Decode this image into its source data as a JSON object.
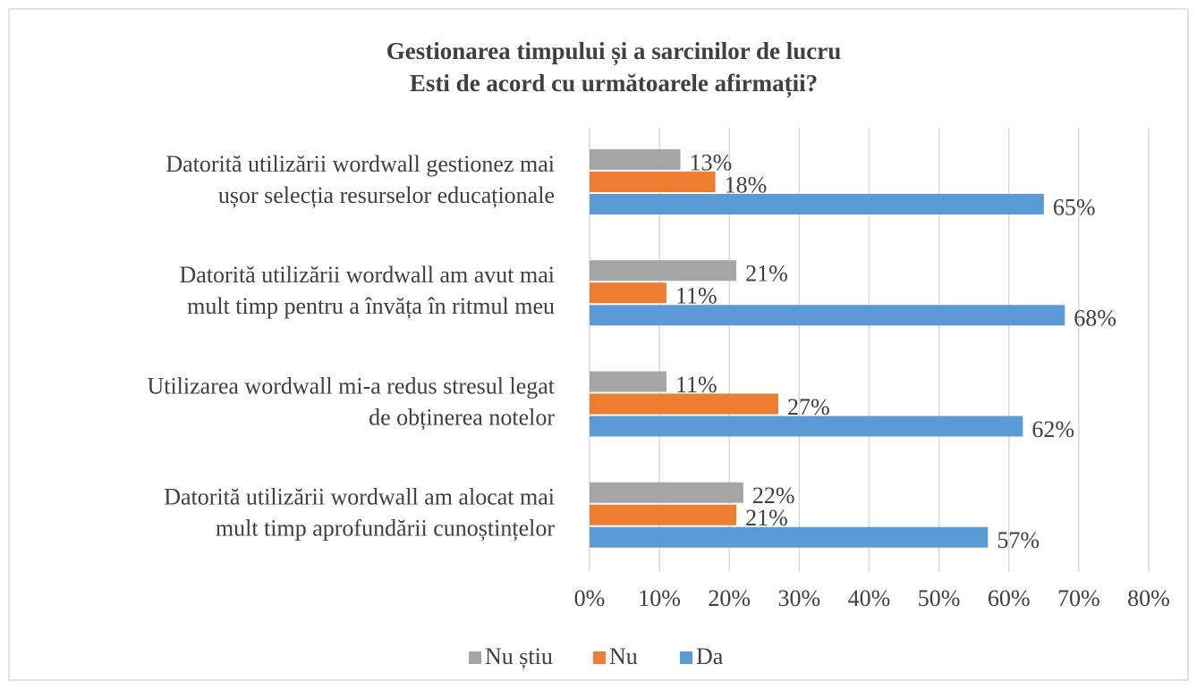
{
  "chart_data": {
    "type": "bar",
    "orientation": "horizontal",
    "title": [
      "Gestionarea timpului și a sarcinilor de lucru",
      "Esti de acord cu următoarele afirmații?"
    ],
    "categories": [
      [
        "Datorită utilizării  wordwall gestionez mai",
        "ușor selecția  resurselor educaționale"
      ],
      [
        "Datorită utilizării  wordwall am avut mai",
        "mult timp pentru a învăța în ritmul meu"
      ],
      [
        "Utilizarea  wordwall mi-a redus stresul legat",
        "de obținerea notelor"
      ],
      [
        "Datorită utilizării  wordwall am alocat mai",
        "mult timp aprofundării cunoștințelor"
      ]
    ],
    "series": [
      {
        "name": "Nu știu",
        "color": "#a5a5a5",
        "values": [
          13,
          21,
          11,
          22
        ],
        "value_labels": [
          "13%",
          "21%",
          "11%",
          "22%"
        ]
      },
      {
        "name": "Nu",
        "color": "#ed7d31",
        "values": [
          18,
          11,
          27,
          21
        ],
        "value_labels": [
          "18%",
          "11%",
          "27%",
          "21%"
        ]
      },
      {
        "name": "Da",
        "color": "#5b9bd5",
        "values": [
          65,
          68,
          62,
          57
        ],
        "value_labels": [
          "65%",
          "68%",
          "62%",
          "57%"
        ]
      }
    ],
    "xlim": [
      0,
      80
    ],
    "xticks": [
      {
        "value": 0,
        "label": "0%"
      },
      {
        "value": 10,
        "label": "10%"
      },
      {
        "value": 20,
        "label": "20%"
      },
      {
        "value": 30,
        "label": "30%"
      },
      {
        "value": 40,
        "label": "40%"
      },
      {
        "value": 50,
        "label": "50%"
      },
      {
        "value": 60,
        "label": "60%"
      },
      {
        "value": 70,
        "label": "70%"
      },
      {
        "value": 80,
        "label": "80%"
      }
    ],
    "grid": true,
    "legend": "bottom"
  }
}
